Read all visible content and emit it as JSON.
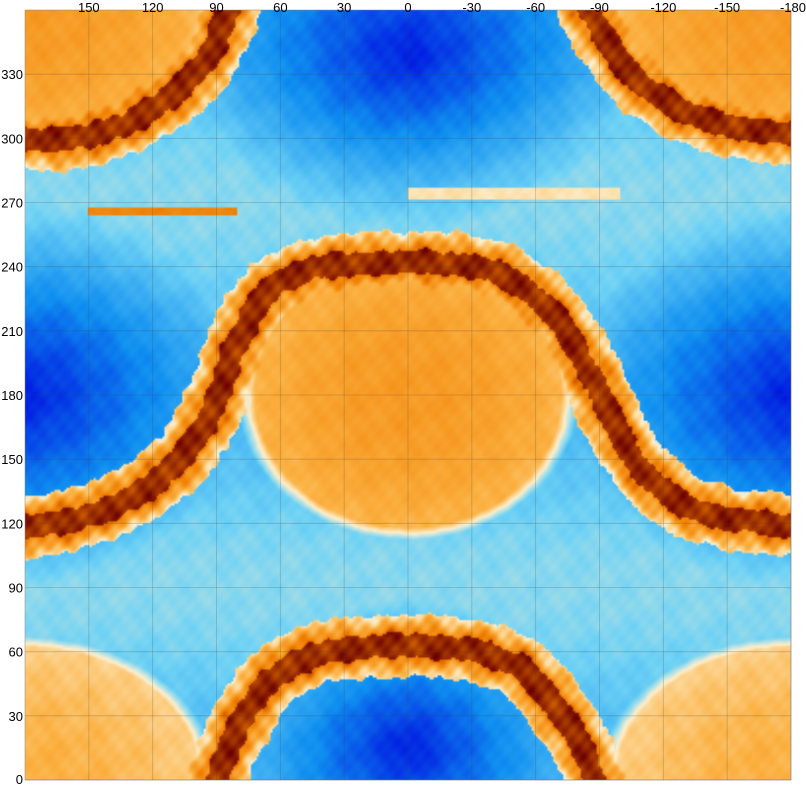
{
  "chart_data": {
    "type": "heatmap",
    "title": "",
    "xlabel": "",
    "ylabel": "",
    "x_axis": {
      "position": "top",
      "direction": "reversed",
      "range": [
        180,
        -180
      ],
      "tick_values": [
        150,
        120,
        90,
        60,
        30,
        0,
        -30,
        -60,
        -90,
        -120,
        -150,
        -180
      ],
      "tick_labels": [
        "150",
        "120",
        "90",
        "60",
        "30",
        "0",
        "-30",
        "-60",
        "-90",
        "-120",
        "-150",
        "-180"
      ]
    },
    "y_axis": {
      "position": "left",
      "range": [
        0,
        360
      ],
      "tick_values": [
        0,
        30,
        60,
        90,
        120,
        150,
        180,
        210,
        240,
        270,
        300,
        330
      ],
      "tick_labels": [
        "0",
        "30",
        "60",
        "90",
        "120",
        "150",
        "180",
        "210",
        "240",
        "270",
        "300",
        "330"
      ]
    },
    "grid": true,
    "colormap": [
      "#0010e0",
      "#0f8ff0",
      "#6fd2f5",
      "#fdf0cf",
      "#fbb040",
      "#f07e00",
      "#6a0000"
    ],
    "structures": {
      "hot_domes": [
        {
          "center_x": 0,
          "center_y": 180,
          "radius_x": 72,
          "radius_y": 62,
          "value": 0.72
        },
        {
          "center_x": 180,
          "center_y": 360,
          "radius_x": 82,
          "radius_y": 62,
          "value": 0.72
        },
        {
          "center_x": -180,
          "center_y": 360,
          "radius_x": 82,
          "radius_y": 62,
          "value": 0.72
        },
        {
          "center_x": 180,
          "center_y": 0,
          "radius_x": 82,
          "radius_y": 62,
          "value": 0.66
        },
        {
          "center_x": -180,
          "center_y": 0,
          "radius_x": 82,
          "radius_y": 62,
          "value": 0.66
        }
      ],
      "cold_cores": [
        {
          "center_x": 0,
          "center_y": 340,
          "radius_x": 75,
          "radius_y": 60,
          "value": 0.02
        },
        {
          "center_x": 0,
          "center_y": 15,
          "radius_x": 55,
          "radius_y": 50,
          "value": 0.02
        },
        {
          "center_x": 180,
          "center_y": 180,
          "radius_x": 72,
          "radius_y": 65,
          "value": 0.02
        },
        {
          "center_x": -180,
          "center_y": 180,
          "radius_x": 72,
          "radius_y": 65,
          "value": 0.02
        }
      ],
      "ridges": [
        {
          "name": "central arch",
          "points": [
            [
              180,
              118
            ],
            [
              160,
              121
            ],
            [
              140,
              127
            ],
            [
              120,
              138
            ],
            [
              105,
              152
            ],
            [
              95,
              167
            ],
            [
              88,
              183
            ],
            [
              82,
              200
            ],
            [
              74,
              218
            ],
            [
              62,
              232
            ],
            [
              45,
              239
            ],
            [
              30,
              241
            ],
            [
              10,
              242
            ],
            [
              -10,
              242
            ],
            [
              -25,
              241
            ],
            [
              -40,
              238
            ],
            [
              -52,
              232
            ],
            [
              -62,
              224
            ],
            [
              -72,
              213
            ],
            [
              -80,
              200
            ],
            [
              -88,
              186
            ],
            [
              -95,
              170
            ],
            [
              -103,
              154
            ],
            [
              -115,
              139
            ],
            [
              -130,
              128
            ],
            [
              -150,
              122
            ],
            [
              -180,
              119
            ]
          ]
        },
        {
          "name": "bottom arch",
          "points": [
            [
              90,
              0
            ],
            [
              85,
              14
            ],
            [
              78,
              28
            ],
            [
              68,
              44
            ],
            [
              55,
              54
            ],
            [
              40,
              60
            ],
            [
              20,
              62
            ],
            [
              0,
              63
            ],
            [
              -20,
              62
            ],
            [
              -38,
              59
            ],
            [
              -52,
              53
            ],
            [
              -62,
              44
            ],
            [
              -70,
              33
            ],
            [
              -78,
              22
            ],
            [
              -84,
              10
            ],
            [
              -88,
              0
            ]
          ]
        },
        {
          "name": "upper-left arc",
          "points": [
            [
              180,
              300
            ],
            [
              168,
              299
            ],
            [
              150,
              301
            ],
            [
              132,
              307
            ],
            [
              118,
              315
            ],
            [
              106,
              324
            ],
            [
              96,
              335
            ],
            [
              90,
              345
            ],
            [
              84,
              360
            ]
          ]
        },
        {
          "name": "upper-right arc",
          "points": [
            [
              -85,
              360
            ],
            [
              -92,
              348
            ],
            [
              -100,
              336
            ],
            [
              -110,
              325
            ],
            [
              -125,
              315
            ],
            [
              -142,
              308
            ],
            [
              -160,
              304
            ],
            [
              -180,
              302
            ]
          ]
        }
      ],
      "bands": [
        {
          "x_from": 150,
          "x_to": 80,
          "y": 266,
          "width": 2,
          "value": 0.78
        },
        {
          "x_from": 0,
          "x_to": -100,
          "y": 274,
          "width": 3,
          "value": 0.55
        }
      ]
    }
  }
}
